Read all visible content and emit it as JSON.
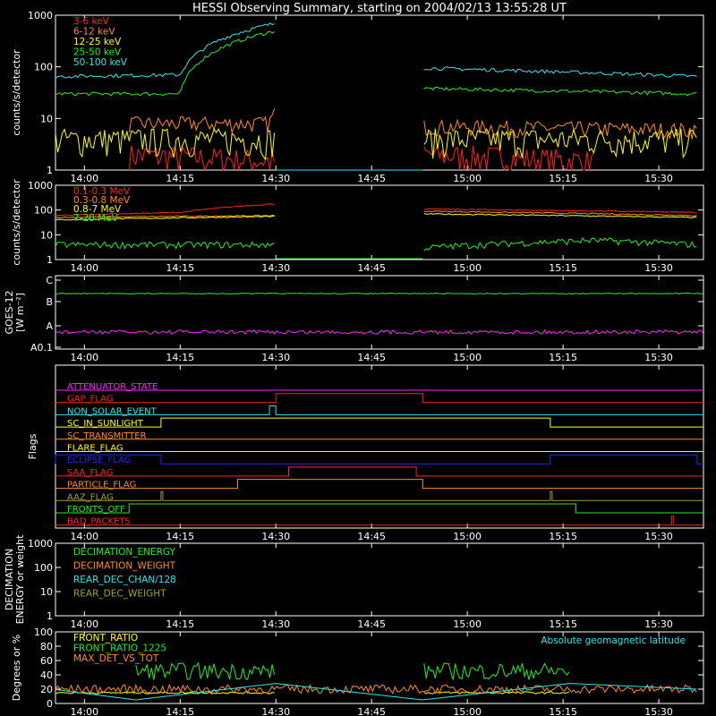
{
  "title": "HESSI Observing Summary, starting on 2004/02/13 13:55:28 UT",
  "time_ticks": [
    "14:00",
    "14:15",
    "14:30",
    "14:45",
    "15:00",
    "15:15",
    "15:30"
  ],
  "colors": {
    "red": "#ff2020",
    "orange": "#ff8c1a",
    "yellow": "#ffff00",
    "green": "#22ee22",
    "cyan": "#33e6e6",
    "magenta": "#ff22ff",
    "blue": "#2222ff",
    "olive": "#a0a030",
    "white": "#ffffff"
  },
  "chart_data": [
    {
      "type": "line",
      "panel": "front_rates",
      "ylabel": "counts/s/detector",
      "yscale": "log",
      "ylim": [
        1,
        1000
      ],
      "yticks": [
        "1",
        "10",
        "100",
        "1000"
      ],
      "data_gap": [
        "14:30",
        "14:53"
      ],
      "series": [
        {
          "name": "3-6 keV",
          "color": "red",
          "x": [
            "14:07",
            "14:30",
            "14:53",
            "15:20"
          ],
          "y": [
            2,
            1.5,
            2,
            1.5
          ]
        },
        {
          "name": "6-12 keV",
          "color": "orange",
          "x": [
            "14:07",
            "14:29",
            "14:30",
            "14:53",
            "15:36"
          ],
          "y": [
            8,
            8,
            15,
            7,
            6
          ]
        },
        {
          "name": "12-25 keV",
          "color": "yellow",
          "x": [
            "13:55",
            "14:30",
            "14:53",
            "15:36"
          ],
          "y": [
            4,
            4,
            4,
            4
          ]
        },
        {
          "name": "25-50 keV",
          "color": "green",
          "x": [
            "13:55",
            "14:15",
            "14:30",
            "14:53",
            "15:36"
          ],
          "y": [
            30,
            30,
            500,
            38,
            30
          ]
        },
        {
          "name": "50-100 keV",
          "color": "cyan",
          "x": [
            "13:55",
            "14:15",
            "14:30",
            "14:53",
            "15:36"
          ],
          "y": [
            65,
            70,
            700,
            95,
            65
          ]
        }
      ]
    },
    {
      "type": "line",
      "panel": "rear_rates",
      "ylabel": "counts/s/detector",
      "yscale": "log",
      "ylim": [
        1,
        1000
      ],
      "yticks": [
        "1",
        "10",
        "100",
        "1000"
      ],
      "data_gap": [
        "14:30",
        "14:53"
      ],
      "series": [
        {
          "name": "0.1-0.3 MeV",
          "color": "red",
          "x": [
            "13:55",
            "14:15",
            "14:30",
            "14:53",
            "15:36"
          ],
          "y": [
            60,
            80,
            180,
            110,
            80
          ]
        },
        {
          "name": "0.3-0.8 MeV",
          "color": "orange",
          "x": [
            "13:55",
            "14:30",
            "14:53",
            "15:36"
          ],
          "y": [
            50,
            60,
            90,
            60
          ]
        },
        {
          "name": "0.8-7 MeV",
          "color": "yellow",
          "x": [
            "13:55",
            "14:30",
            "14:53",
            "15:36"
          ],
          "y": [
            40,
            55,
            70,
            50
          ]
        },
        {
          "name": "7-20 MeV",
          "color": "green",
          "x": [
            "13:55",
            "14:30",
            "14:53",
            "15:20",
            "15:36"
          ],
          "y": [
            4,
            4,
            3,
            6,
            4
          ]
        }
      ]
    },
    {
      "type": "line",
      "panel": "goes",
      "ylabel": "GOES-12",
      "ylabel2": "[W m⁻²]",
      "yscale": "log",
      "yticks": [
        "A0.1",
        "A",
        "B",
        "C"
      ],
      "series": [
        {
          "name": "GOES long",
          "color": "green",
          "x": [
            "13:55",
            "15:36"
          ],
          "y": [
            "C",
            "C"
          ]
        },
        {
          "name": "GOES short",
          "color": "magenta",
          "x": [
            "13:55",
            "15:36"
          ],
          "y": [
            "A",
            "A"
          ]
        }
      ]
    },
    {
      "type": "line",
      "panel": "flags",
      "ylabel": "Flags",
      "flags": [
        {
          "name": "ATTENUATOR_STATE",
          "color": "magenta"
        },
        {
          "name": "GAP_FLAG",
          "color": "red",
          "on": [
            [
              "14:30",
              "14:53"
            ]
          ]
        },
        {
          "name": "NON_SOLAR_EVENT",
          "color": "cyan",
          "on": [
            [
              "14:29",
              "14:30"
            ]
          ]
        },
        {
          "name": "SC_IN_SUNLIGHT",
          "color": "yellow",
          "on": [
            [
              "14:12",
              "15:13"
            ]
          ]
        },
        {
          "name": "SC_TRANSMITTER",
          "color": "orange"
        },
        {
          "name": "FLARE_FLAG",
          "color": "yellow"
        },
        {
          "name": "ECLIPSE_FLAG",
          "color": "blue",
          "on": [
            [
              "13:55",
              "14:12"
            ],
            [
              "15:13",
              "15:36"
            ]
          ]
        },
        {
          "name": "SAA_FLAG",
          "color": "red",
          "on": [
            [
              "14:32",
              "14:52"
            ]
          ]
        },
        {
          "name": "PARTICLE_FLAG",
          "color": "orange",
          "on": [
            [
              "14:24",
              "14:53"
            ]
          ]
        },
        {
          "name": "AAZ_FLAG",
          "color": "olive",
          "on": [
            [
              "14:12",
              "14:12"
            ],
            [
              "15:13",
              "15:13"
            ]
          ]
        },
        {
          "name": "FRONTS_OFF",
          "color": "green",
          "on": [
            [
              "14:07",
              "15:17"
            ]
          ]
        },
        {
          "name": "BAD_PACKETS",
          "color": "red",
          "on": [
            [
              "15:32",
              "15:32"
            ]
          ]
        }
      ]
    },
    {
      "type": "line",
      "panel": "decimation",
      "ylabel": "DECIMATION",
      "ylabel2": "ENERGY or weight",
      "yscale": "log",
      "ylim": [
        1,
        1000
      ],
      "yticks": [
        "1",
        "10",
        "100",
        "1000"
      ],
      "series": [
        {
          "name": "DECIMATION_ENERGY",
          "color": "green"
        },
        {
          "name": "DECIMATION_WEIGHT",
          "color": "orange"
        },
        {
          "name": "REAR_DEC_CHAN/128",
          "color": "cyan"
        },
        {
          "name": "REAR_DEC_WEIGHT",
          "color": "olive"
        }
      ]
    },
    {
      "type": "line",
      "panel": "ratios",
      "ylabel": "Degrees or %",
      "ylim": [
        0,
        100
      ],
      "yticks": [
        "0",
        "20",
        "40",
        "60",
        "80",
        "100"
      ],
      "annotation": "Absolute geomagnetic latitude",
      "series": [
        {
          "name": "FRONT_RATIO",
          "color": "yellow",
          "x": [
            "13:55",
            "14:30",
            "14:53",
            "15:16"
          ],
          "y": [
            15,
            15,
            15,
            15
          ]
        },
        {
          "name": "FRONT_RATIO_1225",
          "color": "green",
          "x": [
            "14:08",
            "14:30",
            "14:53",
            "15:16"
          ],
          "y": [
            45,
            45,
            45,
            45
          ]
        },
        {
          "name": "MAX_DET_VS_TOT",
          "color": "orange",
          "x": [
            "13:55",
            "15:36"
          ],
          "y": [
            20,
            20
          ]
        },
        {
          "name": "Absolute geomagnetic latitude",
          "color": "cyan",
          "x": [
            "13:55",
            "14:08",
            "14:30",
            "14:53",
            "15:16",
            "15:36"
          ],
          "y": [
            20,
            5,
            28,
            5,
            28,
            20
          ]
        }
      ]
    }
  ]
}
